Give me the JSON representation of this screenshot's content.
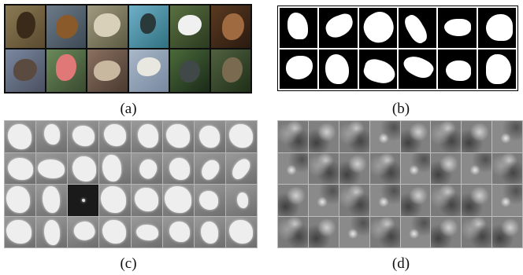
{
  "captions": {
    "a": "(a)",
    "b": "(b)",
    "c": "(c)",
    "d": "(d)"
  },
  "colors": {
    "background": "#ffffff",
    "grid_border_dark": "#202020",
    "mask_foreground": "#ffffff",
    "mask_background": "#000000"
  },
  "panels": {
    "a": {
      "rows": 2,
      "cols": 6,
      "content": "bird-photos"
    },
    "b": {
      "rows": 2,
      "cols": 6,
      "content": "binary-masks"
    },
    "c": {
      "rows": 4,
      "cols": 8,
      "content": "soft-masks"
    },
    "d": {
      "rows": 4,
      "cols": 8,
      "content": "noise-textures"
    }
  }
}
